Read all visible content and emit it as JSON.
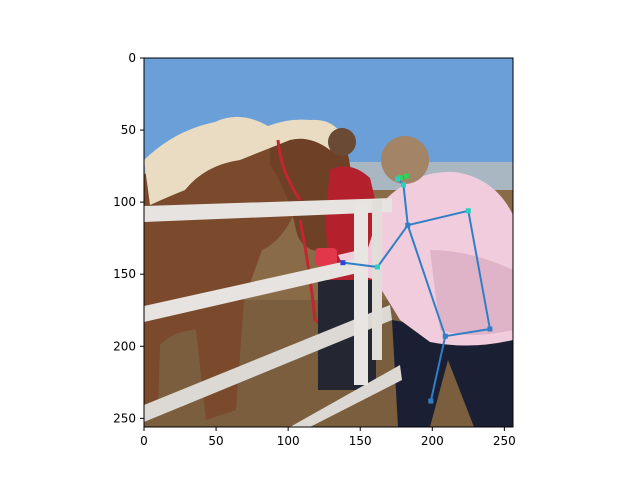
{
  "axes": {
    "x_ticks": [
      "0",
      "50",
      "100",
      "150",
      "200",
      "250"
    ],
    "y_ticks": [
      "0",
      "50",
      "100",
      "150",
      "200",
      "250"
    ],
    "x_range": [
      0,
      256
    ],
    "y_range": [
      256,
      0
    ],
    "y_inverted": true
  },
  "photo": {
    "scene": "horse-at-fence-with-people",
    "sky_color": "#6a9fd8",
    "ground_color": "#8a6b48",
    "horse_color": "#7b4a2c",
    "mane_color": "#e9dcc2",
    "fence_color": "#e6e3e0",
    "jacket_color": "#f1ccdc",
    "pants_color": "#1b1f33"
  },
  "skeleton": {
    "line_color": "#2f7fc6",
    "joints": [
      {
        "name": "eye-left",
        "x": 178,
        "y": 83,
        "color": "#35d05a"
      },
      {
        "name": "eye-right",
        "x": 182,
        "y": 82,
        "color": "#35d05a"
      },
      {
        "name": "nose",
        "x": 176,
        "y": 84,
        "color": "#2ad0c4"
      },
      {
        "name": "neck-top",
        "x": 180,
        "y": 88,
        "color": "#2ad0c4"
      },
      {
        "name": "shoulder-left",
        "x": 183,
        "y": 116,
        "color": "#2f7fc6"
      },
      {
        "name": "shoulder-right",
        "x": 225,
        "y": 106,
        "color": "#2ad0c4"
      },
      {
        "name": "elbow-left",
        "x": 162,
        "y": 145,
        "color": "#2ad0c4"
      },
      {
        "name": "wrist-left",
        "x": 138,
        "y": 142,
        "color": "#2f45d6"
      },
      {
        "name": "hip-left",
        "x": 209,
        "y": 193,
        "color": "#2f7fc6"
      },
      {
        "name": "hip-right",
        "x": 240,
        "y": 188,
        "color": "#2f7fc6"
      },
      {
        "name": "knee-left",
        "x": 199,
        "y": 238,
        "color": "#2f7fc6"
      }
    ],
    "bones": [
      [
        "nose",
        "neck-top"
      ],
      [
        "eye-left",
        "eye-right"
      ],
      [
        "neck-top",
        "shoulder-left"
      ],
      [
        "shoulder-left",
        "shoulder-right"
      ],
      [
        "shoulder-left",
        "elbow-left"
      ],
      [
        "elbow-left",
        "wrist-left"
      ],
      [
        "shoulder-left",
        "hip-left"
      ],
      [
        "shoulder-right",
        "hip-right"
      ],
      [
        "hip-left",
        "hip-right"
      ],
      [
        "hip-left",
        "knee-left"
      ]
    ]
  }
}
